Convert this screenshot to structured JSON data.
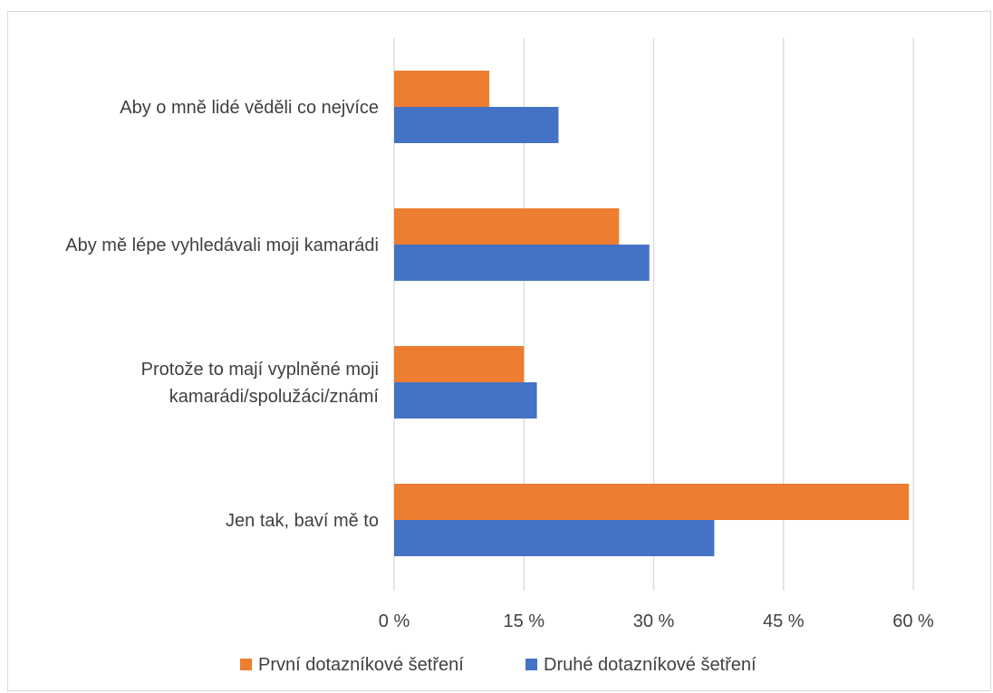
{
  "chart_data": {
    "type": "bar",
    "orientation": "horizontal",
    "categories": [
      [
        "Aby o mně lidé věděli co nejvíce"
      ],
      [
        "Aby mě lépe vyhledávali moji kamarádi"
      ],
      [
        "Protože to mají vyplněné moji",
        "kamarádi/spolužáci/známí"
      ],
      [
        "Jen tak, baví mě to"
      ]
    ],
    "series": [
      {
        "name": "První dotazníkové šetření",
        "color": "#ED7D31",
        "values": [
          11,
          26,
          15,
          59.5
        ]
      },
      {
        "name": "Druhé dotazníkové šetření",
        "color": "#4472C4",
        "values": [
          19,
          29.5,
          16.5,
          37
        ]
      }
    ],
    "xticks": [
      "0 %",
      "15 %",
      "30 %",
      "45 %",
      "60 %"
    ],
    "xtick_values": [
      0,
      15,
      30,
      45,
      60
    ],
    "xlim": [
      0,
      60
    ],
    "grid": "vertical",
    "legend": "bottom"
  }
}
